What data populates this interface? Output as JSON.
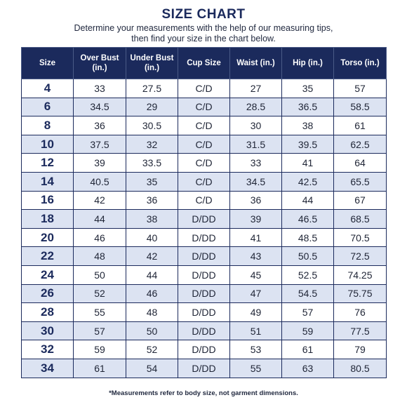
{
  "title": "SIZE CHART",
  "subtitle": {
    "line1": "Determine your measurements with the help of our measuring tips,",
    "line2": "then find your size in the chart below."
  },
  "table": {
    "headers": [
      "Size",
      "Over Bust (in.)",
      "Under Bust (in.)",
      "Cup Size",
      "Waist (in.)",
      "Hip (in.)",
      "Torso (in.)"
    ],
    "rows": [
      [
        "4",
        "33",
        "27.5",
        "C/D",
        "27",
        "35",
        "57"
      ],
      [
        "6",
        "34.5",
        "29",
        "C/D",
        "28.5",
        "36.5",
        "58.5"
      ],
      [
        "8",
        "36",
        "30.5",
        "C/D",
        "30",
        "38",
        "61"
      ],
      [
        "10",
        "37.5",
        "32",
        "C/D",
        "31.5",
        "39.5",
        "62.5"
      ],
      [
        "12",
        "39",
        "33.5",
        "C/D",
        "33",
        "41",
        "64"
      ],
      [
        "14",
        "40.5",
        "35",
        "C/D",
        "34.5",
        "42.5",
        "65.5"
      ],
      [
        "16",
        "42",
        "36",
        "C/D",
        "36",
        "44",
        "67"
      ],
      [
        "18",
        "44",
        "38",
        "D/DD",
        "39",
        "46.5",
        "68.5"
      ],
      [
        "20",
        "46",
        "40",
        "D/DD",
        "41",
        "48.5",
        "70.5"
      ],
      [
        "22",
        "48",
        "42",
        "D/DD",
        "43",
        "50.5",
        "72.5"
      ],
      [
        "24",
        "50",
        "44",
        "D/DD",
        "45",
        "52.5",
        "74.25"
      ],
      [
        "26",
        "52",
        "46",
        "D/DD",
        "47",
        "54.5",
        "75.75"
      ],
      [
        "28",
        "55",
        "48",
        "D/DD",
        "49",
        "57",
        "76"
      ],
      [
        "30",
        "57",
        "50",
        "D/DD",
        "51",
        "59",
        "77.5"
      ],
      [
        "32",
        "59",
        "52",
        "D/DD",
        "53",
        "61",
        "79"
      ],
      [
        "34",
        "61",
        "54",
        "D/DD",
        "55",
        "63",
        "80.5"
      ]
    ]
  },
  "footnote": "*Measurements refer to body size, not garment dimensions.",
  "colors": {
    "header_bg": "#1b2a5c",
    "row_alt_bg": "#dce3f2",
    "text": "#1f2536"
  }
}
